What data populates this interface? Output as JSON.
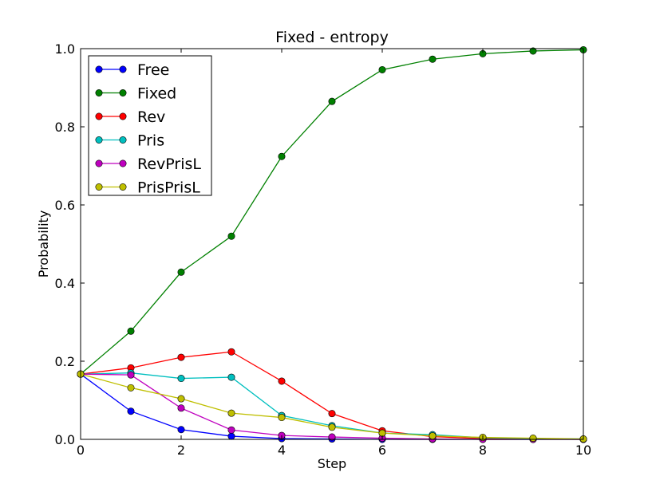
{
  "chart_data": {
    "type": "line",
    "title": "Fixed - entropy",
    "xlabel": "Step",
    "ylabel": "Probability",
    "xlim": [
      0,
      10
    ],
    "ylim": [
      0,
      1.0
    ],
    "xticks": [
      0,
      2,
      4,
      6,
      8,
      10
    ],
    "yticks": [
      0.0,
      0.2,
      0.4,
      0.6,
      0.8,
      1.0
    ],
    "ytick_labels": [
      "0.0",
      "0.2",
      "0.4",
      "0.6",
      "0.8",
      "1.0"
    ],
    "xtick_labels": [
      "0",
      "2",
      "4",
      "6",
      "8",
      "10"
    ],
    "grid": false,
    "legend_position": "top-left",
    "x": [
      0,
      1,
      2,
      3,
      4,
      5,
      6,
      7,
      8,
      9,
      10
    ],
    "series": [
      {
        "name": "Free",
        "color": "#0000ff",
        "values": [
          0.167,
          0.072,
          0.025,
          0.008,
          0.002,
          0.001,
          0.0,
          0.0,
          0.0,
          0.0,
          0.0
        ]
      },
      {
        "name": "Fixed",
        "color": "#008000",
        "values": [
          0.167,
          0.277,
          0.428,
          0.52,
          0.724,
          0.865,
          0.946,
          0.973,
          0.987,
          0.994,
          0.997
        ]
      },
      {
        "name": "Rev",
        "color": "#ff0000",
        "values": [
          0.167,
          0.183,
          0.21,
          0.224,
          0.149,
          0.066,
          0.022,
          0.007,
          0.002,
          0.001,
          0.0
        ]
      },
      {
        "name": "Pris",
        "color": "#00bfbf",
        "values": [
          0.167,
          0.17,
          0.156,
          0.159,
          0.061,
          0.035,
          0.016,
          0.012,
          0.004,
          0.002,
          0.001
        ]
      },
      {
        "name": "RevPrisL",
        "color": "#bf00bf",
        "values": [
          0.167,
          0.165,
          0.08,
          0.024,
          0.01,
          0.006,
          0.003,
          0.001,
          0.0,
          0.0,
          0.0
        ]
      },
      {
        "name": "PrisPrisL",
        "color": "#bfbf00",
        "values": [
          0.167,
          0.132,
          0.104,
          0.067,
          0.056,
          0.031,
          0.016,
          0.009,
          0.005,
          0.003,
          0.001
        ]
      }
    ]
  }
}
